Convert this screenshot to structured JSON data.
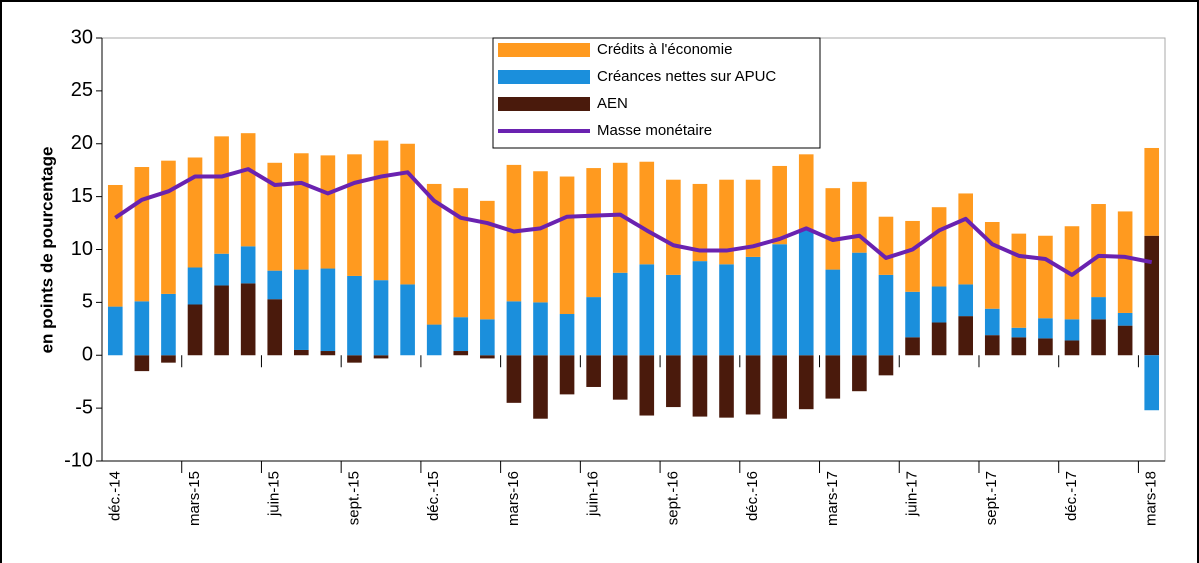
{
  "chart_data": {
    "type": "bar",
    "y_label": "en points de pourcentage",
    "categories": [
      "déc.-14",
      null,
      null,
      "mars-15",
      null,
      null,
      "juin-15",
      null,
      null,
      "sept.-15",
      null,
      null,
      "déc.-15",
      null,
      null,
      "mars-16",
      null,
      null,
      "juin-16",
      null,
      null,
      "sept.-16",
      null,
      null,
      "déc.-16",
      null,
      null,
      "mars-17",
      null,
      null,
      "juin-17",
      null,
      null,
      "sept.-17",
      null,
      null,
      "déc.-17",
      null,
      null,
      "mars-18"
    ],
    "series": [
      {
        "name": "AEN",
        "type": "bar",
        "color": "#4a1a0c",
        "values": [
          0,
          -1.5,
          -0.7,
          4.8,
          6.6,
          6.8,
          5.3,
          0.5,
          0.4,
          -0.7,
          -0.3,
          0,
          0,
          0.4,
          -0.3,
          -4.5,
          -6.0,
          -3.7,
          -3.0,
          -4.2,
          -5.7,
          -4.9,
          -5.8,
          -5.9,
          -5.6,
          -6.0,
          -5.1,
          -4.1,
          -3.4,
          -1.9,
          1.7,
          3.1,
          3.7,
          1.9,
          1.7,
          1.6,
          1.4,
          3.4,
          2.8,
          11.3
        ]
      },
      {
        "name": "Créances nettes sur APUC",
        "type": "bar",
        "color": "#1b8fdc",
        "values": [
          4.6,
          5.1,
          5.8,
          3.5,
          3.0,
          3.5,
          2.7,
          7.6,
          7.8,
          7.5,
          7.1,
          6.7,
          2.9,
          3.2,
          3.4,
          5.1,
          5.0,
          3.9,
          5.5,
          7.8,
          8.6,
          7.6,
          8.9,
          8.6,
          9.3,
          10.5,
          11.8,
          8.1,
          9.7,
          7.6,
          4.3,
          3.4,
          3.0,
          2.5,
          0.9,
          1.9,
          2.0,
          2.1,
          1.2,
          -5.2
        ]
      },
      {
        "name": "Crédits à l'économie",
        "type": "bar",
        "color": "#ff9a1f",
        "values": [
          11.5,
          12.7,
          12.6,
          10.4,
          11.1,
          10.7,
          10.2,
          11.0,
          10.7,
          11.5,
          13.2,
          13.3,
          13.3,
          12.2,
          11.2,
          12.9,
          12.4,
          13.0,
          12.2,
          10.4,
          9.7,
          9.0,
          7.3,
          8.0,
          7.3,
          7.4,
          7.2,
          7.7,
          6.7,
          5.5,
          6.7,
          7.5,
          8.6,
          8.2,
          8.9,
          7.8,
          8.8,
          8.8,
          9.6,
          8.3
        ]
      },
      {
        "name": "Masse monétaire",
        "type": "line",
        "color": "#6a22b0",
        "values": [
          13.0,
          14.7,
          15.5,
          16.9,
          16.9,
          17.6,
          16.1,
          16.3,
          15.3,
          16.3,
          16.9,
          17.3,
          14.6,
          13.0,
          12.5,
          11.7,
          12.0,
          13.1,
          13.2,
          13.3,
          11.8,
          10.4,
          9.9,
          9.9,
          10.3,
          11.0,
          12.0,
          10.9,
          11.3,
          9.2,
          10.0,
          11.8,
          12.9,
          10.5,
          9.4,
          9.1,
          7.6,
          9.4,
          9.3,
          8.8
        ]
      }
    ],
    "legend_order": [
      2,
      1,
      0,
      3
    ],
    "ylim": [
      -10,
      30
    ],
    "yticks": [
      -10,
      -5,
      0,
      5,
      10,
      15,
      20,
      25,
      30
    ],
    "grid": false,
    "legend": "top"
  }
}
